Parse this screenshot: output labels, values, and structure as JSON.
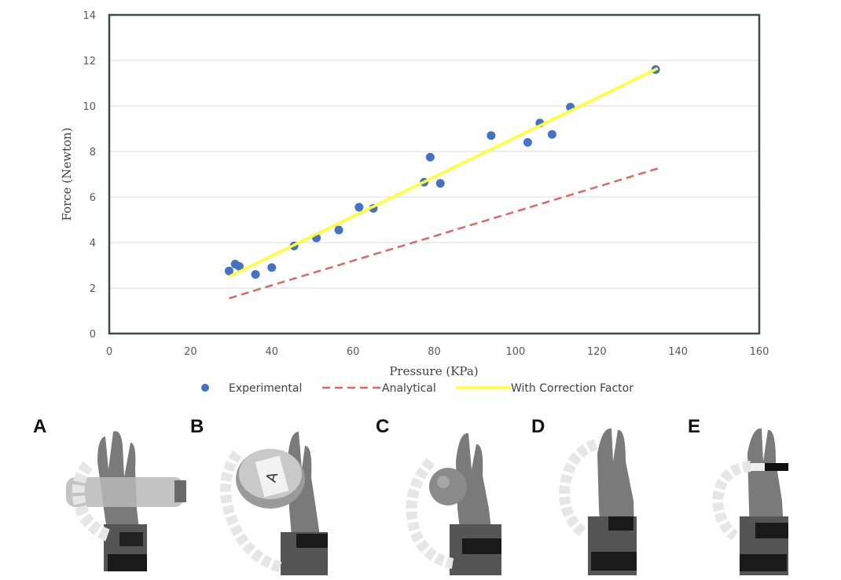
{
  "chart_data": {
    "type": "scatter",
    "title": "",
    "xlabel": "Pressure (KPa)",
    "ylabel": "Force  (Newton)",
    "xlim": [
      0,
      160
    ],
    "ylim": [
      0,
      14
    ],
    "xticks": [
      0,
      20,
      40,
      60,
      80,
      100,
      120,
      140,
      160
    ],
    "yticks": [
      0,
      2,
      4,
      6,
      8,
      10,
      12,
      14
    ],
    "grid": "horizontal",
    "legend_position": "bottom",
    "series": [
      {
        "name": "Experimental",
        "kind": "scatter",
        "color": "#4472c4",
        "points": [
          [
            29.5,
            2.75
          ],
          [
            31.0,
            3.05
          ],
          [
            32.0,
            2.95
          ],
          [
            36.0,
            2.6
          ],
          [
            40.0,
            2.9
          ],
          [
            45.5,
            3.85
          ],
          [
            51.0,
            4.2
          ],
          [
            56.5,
            4.55
          ],
          [
            61.5,
            5.55
          ],
          [
            65.0,
            5.5
          ],
          [
            77.5,
            6.65
          ],
          [
            79.0,
            7.75
          ],
          [
            81.5,
            6.6
          ],
          [
            94.0,
            8.7
          ],
          [
            103.0,
            8.4
          ],
          [
            106.0,
            9.25
          ],
          [
            109.0,
            8.75
          ],
          [
            113.5,
            9.95
          ],
          [
            134.5,
            11.6
          ]
        ]
      },
      {
        "name": "Analytical",
        "kind": "line",
        "style": "dashed",
        "color": "#e06666",
        "points": [
          [
            29.5,
            1.55
          ],
          [
            135.0,
            7.25
          ]
        ]
      },
      {
        "name": "With Correction Factor",
        "kind": "line",
        "style": "solid",
        "color": "#ffff33",
        "points": [
          [
            29.5,
            2.5
          ],
          [
            135.0,
            11.65
          ]
        ]
      }
    ]
  },
  "panels": [
    {
      "letter": "A",
      "object": "bottle"
    },
    {
      "letter": "B",
      "object": "jar",
      "jar_label": "A"
    },
    {
      "letter": "C",
      "object": "ball"
    },
    {
      "letter": "D",
      "object": "palm"
    },
    {
      "letter": "E",
      "object": "marker"
    }
  ]
}
